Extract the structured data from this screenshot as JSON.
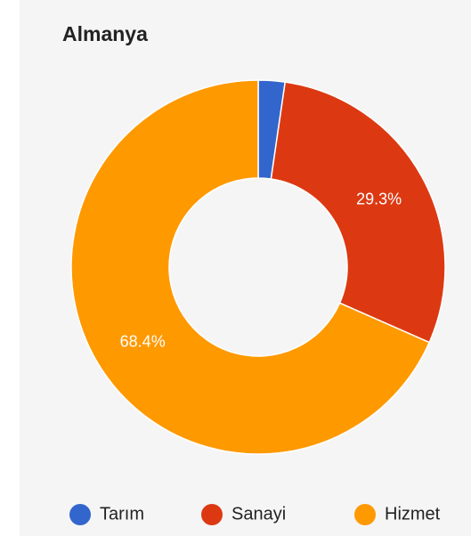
{
  "chart_data": {
    "type": "pie",
    "title": "Almanya",
    "categories": [
      "Tarım",
      "Sanayi",
      "Hizmet"
    ],
    "values": [
      2.3,
      29.3,
      68.4
    ],
    "value_labels": [
      null,
      "29.3%",
      "68.4%"
    ],
    "colors": [
      "#3366cc",
      "#dc3912",
      "#ff9900"
    ],
    "donut": true,
    "legend": "bottom"
  }
}
